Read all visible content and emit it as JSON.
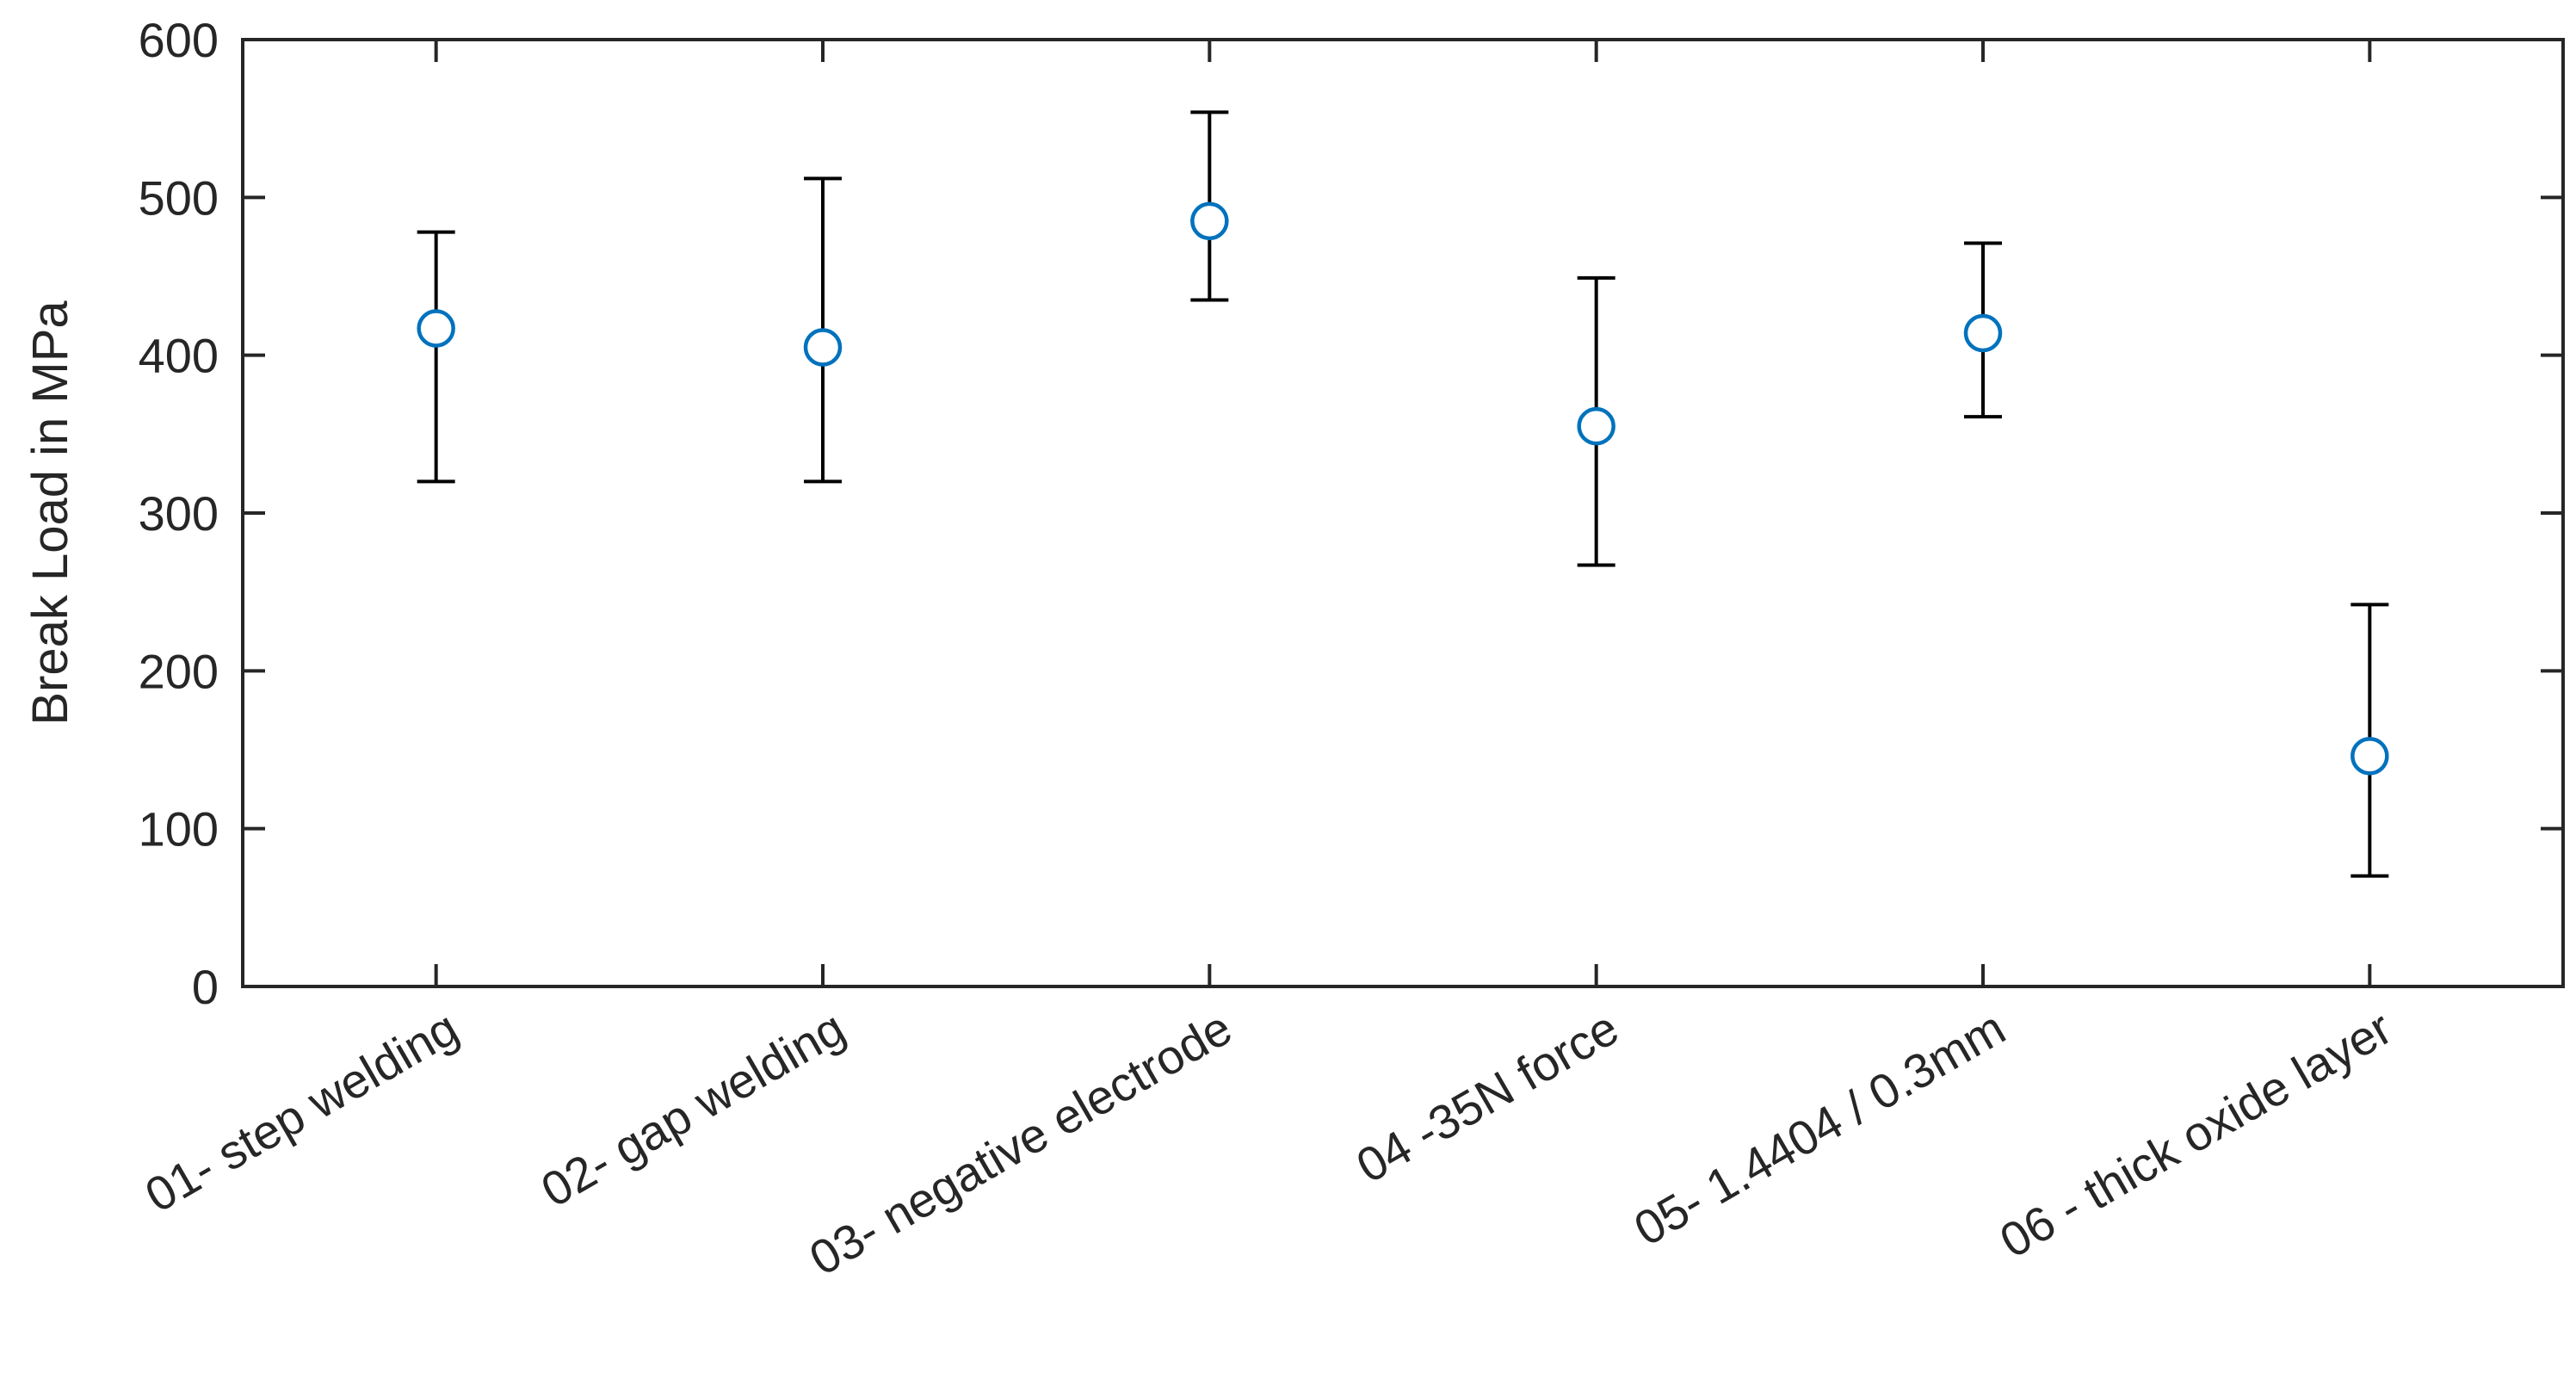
{
  "chart_data": {
    "type": "scatter",
    "title": "",
    "xlabel": "",
    "ylabel": "Break Load in MPa",
    "ylim": [
      0,
      600
    ],
    "yticks": [
      0,
      100,
      200,
      300,
      400,
      500,
      600
    ],
    "ytick_labels": [
      "0",
      "100",
      "200",
      "300",
      "400",
      "500",
      "600"
    ],
    "grid": false,
    "legend": null,
    "marker": "open-circle",
    "marker_color": "#0072BD",
    "errorbar_color": "#000000",
    "axis_color": "#262626",
    "categories": [
      "01- step welding",
      "02- gap welding",
      "03- negative electrode",
      "04 -35N force",
      "05- 1.4404 / 0.3mm",
      "06 - thick oxide layer"
    ],
    "series": [
      {
        "name": "Break Load",
        "values": [
          417,
          405,
          485,
          355,
          414,
          146
        ],
        "error_low": [
          320,
          320,
          435,
          267,
          361,
          70
        ],
        "error_high": [
          478,
          512,
          554,
          449,
          471,
          242
        ]
      }
    ]
  }
}
